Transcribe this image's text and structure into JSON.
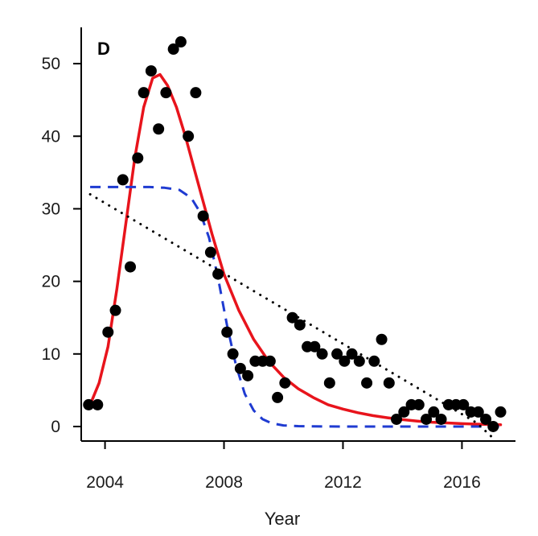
{
  "chart_data": {
    "type": "scatter",
    "panel_label": "D",
    "xlabel": "Year",
    "ylabel": "",
    "xlim": [
      2003.2,
      2017.8
    ],
    "ylim": [
      -2,
      55
    ],
    "x_ticks": [
      2004,
      2008,
      2012,
      2016
    ],
    "y_ticks": [
      0,
      10,
      20,
      30,
      40,
      50
    ],
    "grid": false,
    "points": {
      "color": "#000000",
      "x": [
        2003.45,
        2003.75,
        2004.1,
        2004.35,
        2004.6,
        2004.85,
        2005.1,
        2005.3,
        2005.55,
        2005.8,
        2006.05,
        2006.3,
        2006.55,
        2006.8,
        2007.05,
        2007.3,
        2007.55,
        2007.8,
        2008.1,
        2008.3,
        2008.55,
        2008.8,
        2009.05,
        2009.3,
        2009.55,
        2009.8,
        2010.05,
        2010.3,
        2010.55,
        2010.8,
        2011.05,
        2011.3,
        2011.55,
        2011.8,
        2012.05,
        2012.3,
        2012.55,
        2012.8,
        2013.05,
        2013.3,
        2013.55,
        2013.8,
        2014.05,
        2014.3,
        2014.55,
        2014.8,
        2015.05,
        2015.3,
        2015.55,
        2015.8,
        2016.05,
        2016.3,
        2016.55,
        2016.8,
        2017.05,
        2017.3
      ],
      "y": [
        3,
        3,
        13,
        16,
        34,
        22,
        37,
        46,
        49,
        41,
        46,
        52,
        53,
        40,
        46,
        29,
        24,
        21,
        13,
        10,
        8,
        7,
        9,
        9,
        9,
        4,
        6,
        15,
        14,
        11,
        11,
        10,
        6,
        10,
        9,
        10,
        9,
        6,
        9,
        12,
        6,
        1,
        2,
        3,
        3,
        1,
        2,
        1,
        3,
        3,
        3,
        2,
        2,
        1,
        0,
        2
      ]
    },
    "series": [
      {
        "style": "solid",
        "color": "#e8141c",
        "x": [
          2003.5,
          2003.8,
          2004.1,
          2004.4,
          2004.7,
          2005.0,
          2005.3,
          2005.6,
          2005.85,
          2006.1,
          2006.4,
          2006.7,
          2007.0,
          2007.3,
          2007.6,
          2008.0,
          2008.5,
          2009.0,
          2009.5,
          2010.0,
          2010.5,
          2011.0,
          2011.5,
          2012.0,
          2012.5,
          2013.0,
          2013.5,
          2014.0,
          2014.5,
          2015.0,
          2015.5,
          2016.0,
          2016.5,
          2017.0,
          2017.3
        ],
        "y": [
          3,
          6,
          11,
          19,
          28,
          37,
          44,
          48,
          48.5,
          47,
          44,
          40,
          35.5,
          31,
          26.5,
          21,
          16,
          12,
          9,
          6.8,
          5.2,
          4,
          3,
          2.4,
          1.9,
          1.5,
          1.2,
          0.95,
          0.75,
          0.6,
          0.5,
          0.4,
          0.33,
          0.27,
          0.24
        ]
      },
      {
        "style": "dashed",
        "color": "#1f3bd1",
        "x": [
          2003.5,
          2004.5,
          2005.5,
          2006.0,
          2006.5,
          2006.9,
          2007.2,
          2007.5,
          2007.8,
          2008.1,
          2008.4,
          2008.7,
          2009.0,
          2009.3,
          2009.6,
          2010.0,
          2010.5,
          2011.0,
          2012.0,
          2013.0,
          2014.0,
          2015.0,
          2016.0,
          2017.3
        ],
        "y": [
          33,
          33,
          33,
          32.9,
          32.6,
          31.5,
          29.5,
          26,
          20.5,
          14,
          8.5,
          4.5,
          2.2,
          1,
          0.45,
          0.15,
          0.05,
          0.02,
          0,
          0,
          0,
          0,
          0,
          0
        ]
      },
      {
        "style": "dotted",
        "color": "#000000",
        "x": [
          2003.5,
          2016.5,
          2017.15
        ],
        "y": [
          32,
          0.5,
          -2
        ]
      }
    ]
  }
}
